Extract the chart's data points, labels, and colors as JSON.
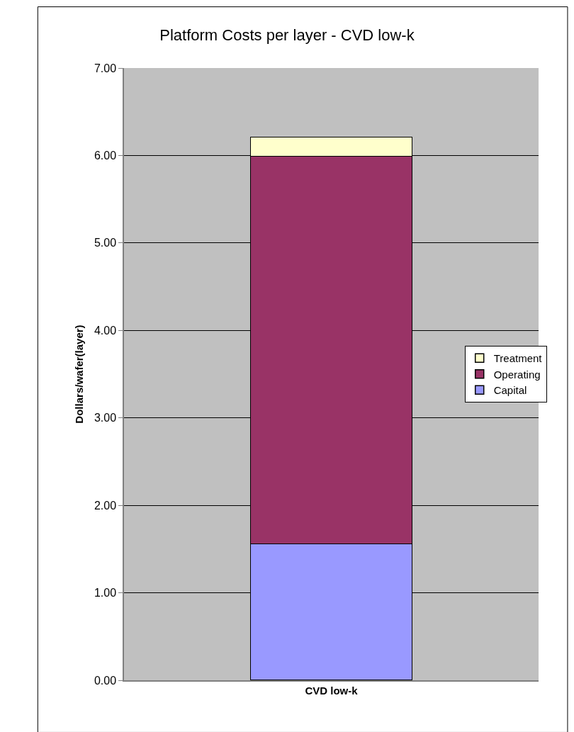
{
  "chart_data": {
    "type": "bar",
    "title": "Platform Costs per layer - CVD low-k",
    "ylabel": "Dollars/wafer(layer)",
    "categories": [
      "CVD low-k"
    ],
    "stacked": true,
    "series": [
      {
        "name": "Capital",
        "color": "#9999ff",
        "values": [
          1.56
        ]
      },
      {
        "name": "Operating",
        "color": "#993366",
        "values": [
          4.43
        ]
      },
      {
        "name": "Treatment",
        "color": "#ffffcc",
        "values": [
          0.22
        ]
      }
    ],
    "ylim": [
      0,
      7
    ],
    "yticks": [
      {
        "value": 0,
        "label": "0.00"
      },
      {
        "value": 1,
        "label": "1.00"
      },
      {
        "value": 2,
        "label": "2.00"
      },
      {
        "value": 3,
        "label": "3.00"
      },
      {
        "value": 4,
        "label": "4.00"
      },
      {
        "value": 5,
        "label": "5.00"
      },
      {
        "value": 6,
        "label": "6.00"
      },
      {
        "value": 7,
        "label": "7.00"
      }
    ],
    "grid": "y",
    "legend": "right"
  }
}
